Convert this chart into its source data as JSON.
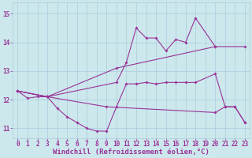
{
  "background_color": "#cce8ec",
  "line_color": "#993399",
  "grid_color": "#aaccdd",
  "xlabel": "Windchill (Refroidissement éolien,°C)",
  "xlim": [
    -0.5,
    23.5
  ],
  "ylim": [
    10.65,
    15.4
  ],
  "yticks": [
    11,
    12,
    13,
    14,
    15
  ],
  "xticks": [
    0,
    1,
    2,
    3,
    4,
    5,
    6,
    7,
    8,
    9,
    10,
    11,
    12,
    13,
    14,
    15,
    16,
    17,
    18,
    19,
    20,
    21,
    22,
    23
  ],
  "line1_x": [
    0,
    1,
    2,
    3,
    4,
    5,
    6,
    7,
    8,
    9,
    10,
    11,
    12,
    13,
    14,
    15,
    16,
    17,
    18,
    20,
    21,
    22,
    23
  ],
  "line1_y": [
    12.3,
    12.05,
    12.1,
    12.1,
    11.7,
    11.4,
    11.2,
    11.0,
    10.9,
    10.9,
    11.75,
    12.55,
    12.55,
    12.6,
    12.55,
    12.6,
    12.6,
    12.6,
    12.6,
    12.9,
    11.75,
    11.75,
    11.2
  ],
  "line2_x": [
    0,
    3,
    10,
    11,
    12,
    13,
    14,
    15,
    16,
    17,
    18,
    20
  ],
  "line2_y": [
    12.3,
    12.1,
    12.6,
    13.3,
    14.5,
    14.15,
    14.15,
    13.7,
    14.1,
    14.0,
    14.85,
    13.85
  ],
  "line3_x": [
    0,
    3,
    10,
    20,
    23
  ],
  "line3_y": [
    12.3,
    12.1,
    13.1,
    13.85,
    13.85
  ],
  "line4_x": [
    0,
    3,
    9,
    20,
    21,
    22,
    23
  ],
  "line4_y": [
    12.3,
    12.1,
    11.75,
    11.55,
    11.75,
    11.75,
    11.2
  ],
  "tick_fontsize": 5.5,
  "label_fontsize": 6.5,
  "figsize": [
    3.2,
    2.0
  ],
  "dpi": 100
}
